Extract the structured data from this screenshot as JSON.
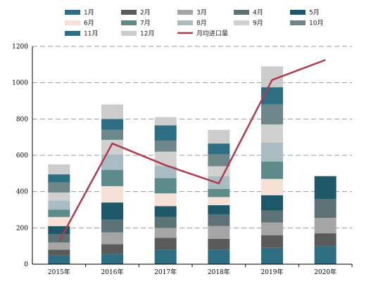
{
  "chart_data": {
    "type": "bar",
    "stacked": true,
    "categories": [
      "2015年",
      "2016年",
      "2017年",
      "2018年",
      "2019年",
      "2020年"
    ],
    "series": [
      {
        "name": "1月",
        "color": "#2e6e82",
        "values": [
          50,
          55,
          80,
          80,
          90,
          100
        ]
      },
      {
        "name": "2月",
        "color": "#5a5a5a",
        "values": [
          30,
          55,
          65,
          60,
          70,
          70
        ]
      },
      {
        "name": "3月",
        "color": "#a5a5a5",
        "values": [
          40,
          65,
          55,
          70,
          70,
          85
        ]
      },
      {
        "name": "4月",
        "color": "#5c7276",
        "values": [
          45,
          70,
          60,
          65,
          65,
          105
        ]
      },
      {
        "name": "5月",
        "color": "#1e5868",
        "values": [
          45,
          95,
          60,
          50,
          85,
          125
        ]
      },
      {
        "name": "6月",
        "color": "#f7e0d6",
        "values": [
          50,
          90,
          70,
          45,
          90,
          0
        ]
      },
      {
        "name": "7月",
        "color": "#5d8a8a",
        "values": [
          40,
          90,
          85,
          45,
          95,
          0
        ]
      },
      {
        "name": "8月",
        "color": "#a9bcc1",
        "values": [
          50,
          85,
          65,
          70,
          105,
          0
        ]
      },
      {
        "name": "9月",
        "color": "#d0d0d0",
        "values": [
          45,
          80,
          80,
          55,
          100,
          0
        ]
      },
      {
        "name": "10月",
        "color": "#6e878a",
        "values": [
          55,
          55,
          60,
          65,
          110,
          0
        ]
      },
      {
        "name": "11月",
        "color": "#2e6e82",
        "values": [
          45,
          60,
          85,
          60,
          95,
          0
        ]
      },
      {
        "name": "12月",
        "color": "#cccccc",
        "values": [
          55,
          80,
          45,
          75,
          115,
          0
        ]
      }
    ],
    "line": {
      "name": "月均进口量",
      "color": "#b03a4e",
      "values": [
        125,
        665,
        545,
        445,
        1015,
        1125
      ]
    },
    "ylim": [
      0,
      1200
    ],
    "yticks": [
      0,
      200,
      400,
      600,
      800,
      1000,
      1200
    ],
    "grid": true,
    "legend_position": "top",
    "title": "",
    "xlabel": "",
    "ylabel": ""
  }
}
